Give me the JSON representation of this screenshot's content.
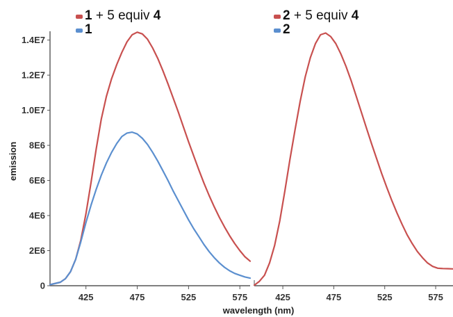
{
  "chart_data": [
    {
      "type": "line",
      "xlabel": "wavelength (nm)",
      "ylabel": "emission",
      "xlim": [
        390,
        585
      ],
      "ylim": [
        0,
        14500000
      ],
      "xticks": [
        425,
        475,
        525,
        575
      ],
      "yticks": [
        {
          "value": 0,
          "label": "0"
        },
        {
          "value": 2000000,
          "label": "2E6"
        },
        {
          "value": 4000000,
          "label": "4E6"
        },
        {
          "value": 6000000,
          "label": "6E6"
        },
        {
          "value": 8000000,
          "label": "8E6"
        },
        {
          "value": 10000000,
          "label": "1.0E7"
        },
        {
          "value": 12000000,
          "label": "1.2E7"
        },
        {
          "value": 14000000,
          "label": "1.4E7"
        }
      ],
      "grid": false,
      "legend_position": "top-left",
      "series": [
        {
          "legend": [
            {
              "text": "1",
              "bold": true
            },
            {
              "text": " + 5 equiv ",
              "bold": false
            },
            {
              "text": "4",
              "bold": true
            }
          ],
          "color": "#c8504f",
          "x": [
            390,
            400,
            405,
            410,
            415,
            420,
            425,
            430,
            435,
            440,
            445,
            450,
            455,
            460,
            465,
            470,
            475,
            480,
            485,
            490,
            495,
            500,
            505,
            510,
            515,
            520,
            525,
            530,
            535,
            540,
            545,
            550,
            555,
            560,
            565,
            570,
            575,
            580,
            585
          ],
          "y": [
            60000,
            200000,
            400000,
            800000,
            1500000,
            2600000,
            4100000,
            5900000,
            7800000,
            9500000,
            10800000,
            11800000,
            12600000,
            13300000,
            13900000,
            14300000,
            14450000,
            14350000,
            14050000,
            13550000,
            12950000,
            12250000,
            11500000,
            10700000,
            9900000,
            9050000,
            8200000,
            7400000,
            6600000,
            5850000,
            5150000,
            4500000,
            3900000,
            3350000,
            2850000,
            2400000,
            2000000,
            1650000,
            1400000
          ]
        },
        {
          "legend": [
            {
              "text": "1",
              "bold": true
            }
          ],
          "color": "#5b8fcf",
          "x": [
            390,
            400,
            405,
            410,
            415,
            420,
            425,
            430,
            435,
            440,
            445,
            450,
            455,
            460,
            465,
            470,
            475,
            480,
            485,
            490,
            495,
            500,
            505,
            510,
            515,
            520,
            525,
            530,
            535,
            540,
            545,
            550,
            555,
            560,
            565,
            570,
            575,
            580,
            585
          ],
          "y": [
            60000,
            200000,
            400000,
            800000,
            1500000,
            2500000,
            3600000,
            4600000,
            5500000,
            6300000,
            7000000,
            7600000,
            8100000,
            8500000,
            8700000,
            8750000,
            8650000,
            8400000,
            8050000,
            7600000,
            7100000,
            6550000,
            6000000,
            5400000,
            4850000,
            4300000,
            3750000,
            3250000,
            2800000,
            2350000,
            1950000,
            1600000,
            1300000,
            1050000,
            850000,
            700000,
            600000,
            500000,
            430000
          ]
        }
      ]
    },
    {
      "type": "line",
      "xlabel": "",
      "ylabel": "",
      "xlim": [
        397,
        592
      ],
      "ylim": [
        0,
        14500000
      ],
      "xticks": [
        425,
        475,
        525,
        575
      ],
      "yticks": [],
      "grid": false,
      "legend_position": "top-left",
      "series": [
        {
          "legend": [
            {
              "text": "2",
              "bold": true
            },
            {
              "text": " + 5 equiv ",
              "bold": false
            },
            {
              "text": "4",
              "bold": true
            }
          ],
          "color": "#c8504f",
          "x": [
            397,
            402,
            407,
            412,
            417,
            422,
            427,
            432,
            437,
            442,
            447,
            452,
            457,
            462,
            467,
            472,
            477,
            482,
            487,
            492,
            497,
            502,
            507,
            512,
            517,
            522,
            527,
            532,
            537,
            542,
            547,
            552,
            557,
            562,
            567,
            572,
            577,
            582,
            587,
            592
          ],
          "y": [
            30000,
            250000,
            600000,
            1300000,
            2300000,
            3700000,
            5400000,
            7200000,
            8900000,
            10500000,
            11900000,
            13000000,
            13800000,
            14300000,
            14400000,
            14200000,
            13800000,
            13200000,
            12500000,
            11700000,
            10800000,
            9900000,
            9000000,
            8100000,
            7250000,
            6400000,
            5600000,
            4850000,
            4150000,
            3500000,
            2900000,
            2400000,
            1950000,
            1600000,
            1300000,
            1100000,
            1000000,
            980000,
            970000,
            960000
          ]
        },
        {
          "legend": [
            {
              "text": "2",
              "bold": true
            }
          ],
          "color": "#5b8fcf",
          "x": [],
          "y": []
        }
      ]
    }
  ]
}
